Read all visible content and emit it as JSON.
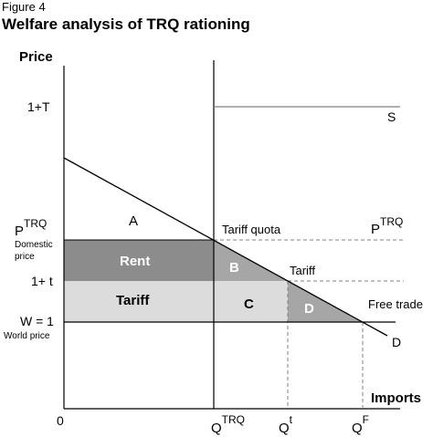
{
  "figure": {
    "label": "Figure 4",
    "title": "Welfare analysis of TRQ rationing"
  },
  "axes": {
    "y_label": "Price",
    "x_label": "Imports",
    "origin": "0"
  },
  "price_levels": {
    "tariff_high": "1+T",
    "p_trq": {
      "base": "P",
      "sup": "TRQ"
    },
    "domestic_price": "Domestic price",
    "tariff_low": "1+ t",
    "world": "W = 1",
    "world_price": "World price"
  },
  "quantities": {
    "q_trq": {
      "base": "Q",
      "sup": "TRQ"
    },
    "q_t": {
      "base": "Q",
      "sup": "t"
    },
    "q_f": {
      "base": "Q",
      "sup": "F"
    }
  },
  "curves": {
    "supply": "S",
    "demand": "D",
    "tariff_quota": "Tariff quota",
    "p_trq_right": {
      "base": "P",
      "sup": "TRQ"
    },
    "tariff": "Tariff",
    "free_trade": "Free trade"
  },
  "areas": {
    "a": "A",
    "rent": "Rent",
    "b": "B",
    "tariff": "Tariff",
    "c": "C",
    "d": "D"
  },
  "colors": {
    "rent_fill": "#8c8c8c",
    "b_fill": "#a6a6a6",
    "tariff_fill": "#dcdcdc",
    "d_fill": "#a6a6a6",
    "supply_line": "#808080",
    "dashed": "#808080"
  }
}
